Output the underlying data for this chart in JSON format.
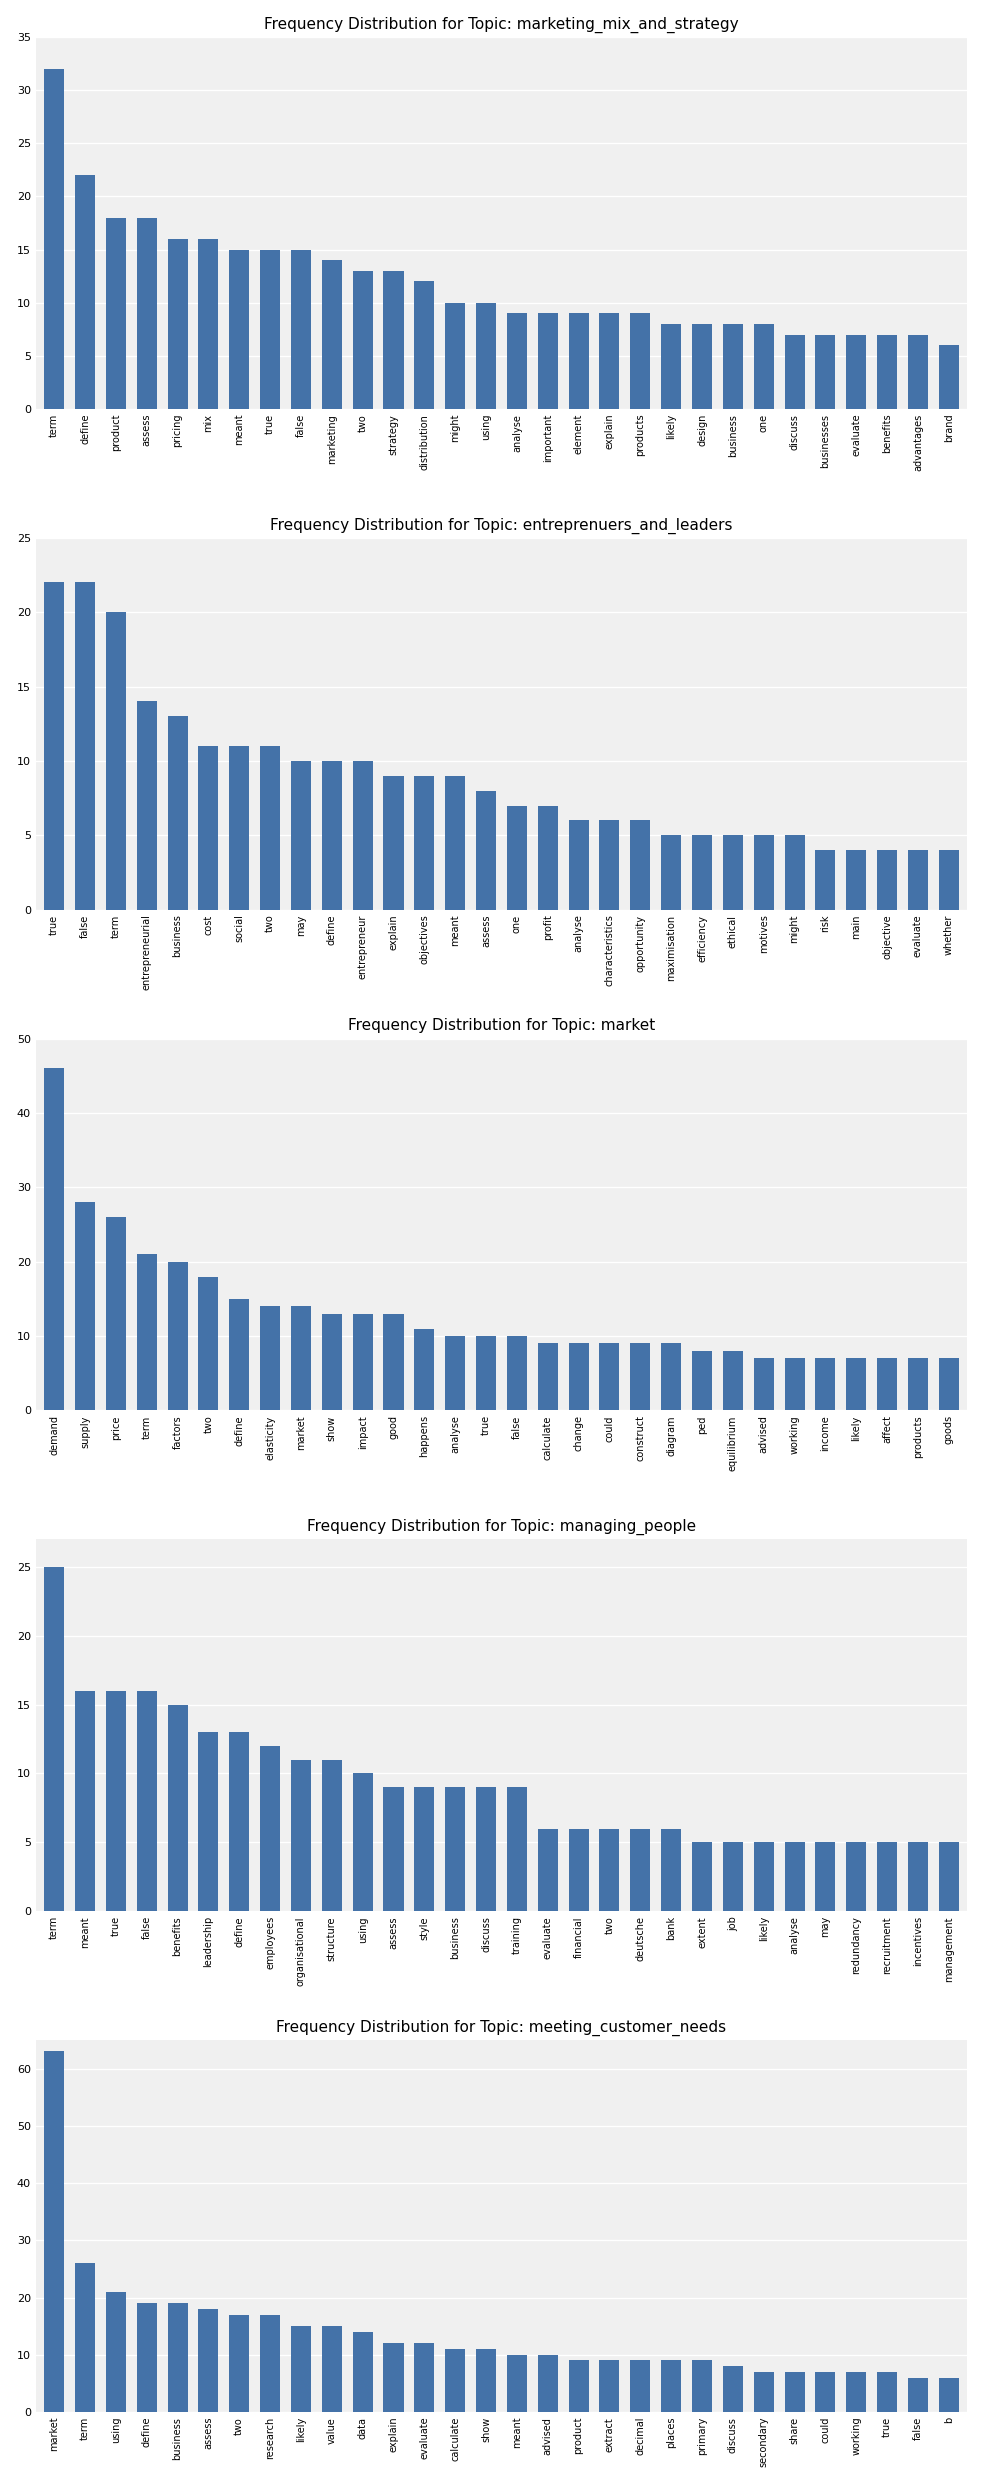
{
  "charts": [
    {
      "title": "Frequency Distribution for Topic: marketing_mix_and_strategy",
      "words": [
        "term",
        "define",
        "product",
        "assess",
        "pricing",
        "mix",
        "meant",
        "true",
        "false",
        "marketing",
        "two",
        "strategy",
        "distribution",
        "might",
        "using",
        "analyse",
        "important",
        "element",
        "explain",
        "products",
        "likely",
        "design",
        "business",
        "one",
        "discuss",
        "businesses",
        "evaluate",
        "benefits",
        "advantages",
        "brand"
      ],
      "values": [
        32,
        22,
        18,
        18,
        16,
        16,
        15,
        15,
        15,
        14,
        13,
        13,
        12,
        10,
        10,
        9,
        9,
        9,
        9,
        9,
        8,
        8,
        8,
        8,
        7,
        7,
        7,
        7,
        7,
        6
      ],
      "ylim": [
        0,
        35
      ],
      "yticks": [
        0,
        5,
        10,
        15,
        20,
        25,
        30,
        35
      ]
    },
    {
      "title": "Frequency Distribution for Topic: entreprenuers_and_leaders",
      "words": [
        "true",
        "false",
        "term",
        "entrepreneurial",
        "business",
        "cost",
        "social",
        "two",
        "may",
        "define",
        "entrepreneur",
        "explain",
        "objectives",
        "meant",
        "assess",
        "one",
        "profit",
        "analyse",
        "characteristics",
        "opportunity",
        "maximisation",
        "efficiency",
        "ethical",
        "motives",
        "might",
        "risk",
        "main",
        "objective",
        "evaluate",
        "whether"
      ],
      "values": [
        22,
        22,
        20,
        14,
        13,
        11,
        11,
        11,
        10,
        10,
        10,
        9,
        9,
        9,
        8,
        7,
        7,
        6,
        6,
        6,
        5,
        5,
        5,
        5,
        5,
        4,
        4,
        4,
        4,
        4
      ],
      "ylim": [
        0,
        25
      ],
      "yticks": [
        0,
        5,
        10,
        15,
        20,
        25
      ]
    },
    {
      "title": "Frequency Distribution for Topic: market",
      "words": [
        "demand",
        "supply",
        "price",
        "term",
        "factors",
        "two",
        "define",
        "elasticity",
        "market",
        "show",
        "impact",
        "good",
        "happens",
        "analyse",
        "true",
        "false",
        "calculate",
        "change",
        "could",
        "construct",
        "diagram",
        "ped",
        "equilibrium",
        "advised",
        "working",
        "income",
        "likely",
        "affect",
        "products",
        "goods"
      ],
      "values": [
        46,
        28,
        26,
        21,
        20,
        18,
        15,
        14,
        14,
        13,
        13,
        13,
        11,
        10,
        10,
        10,
        9,
        9,
        9,
        9,
        9,
        8,
        8,
        7,
        7,
        7,
        7,
        7,
        7,
        7
      ],
      "ylim": [
        0,
        50
      ],
      "yticks": [
        0,
        10,
        20,
        30,
        40,
        50
      ]
    },
    {
      "title": "Frequency Distribution for Topic: managing_people",
      "words": [
        "term",
        "meant",
        "true",
        "false",
        "benefits",
        "leadership",
        "define",
        "employees",
        "organisational",
        "structure",
        "using",
        "assess",
        "style",
        "business",
        "discuss",
        "training",
        "evaluate",
        "financial",
        "two",
        "deutsche",
        "bank",
        "extent",
        "job",
        "likely",
        "analyse",
        "may",
        "redundancy",
        "recruitment",
        "incentives",
        "management"
      ],
      "values": [
        25,
        16,
        16,
        16,
        15,
        13,
        13,
        12,
        11,
        11,
        10,
        9,
        9,
        9,
        9,
        9,
        6,
        6,
        6,
        6,
        6,
        5,
        5,
        5,
        5,
        5,
        5,
        5,
        5,
        5
      ],
      "ylim": [
        0,
        27
      ],
      "yticks": [
        0,
        5,
        10,
        15,
        20,
        25
      ]
    },
    {
      "title": "Frequency Distribution for Topic: meeting_customer_needs",
      "words": [
        "market",
        "term",
        "using",
        "define",
        "business",
        "assess",
        "two",
        "research",
        "likely",
        "value",
        "data",
        "explain",
        "evaluate",
        "calculate",
        "show",
        "meant",
        "advised",
        "product",
        "extract",
        "decimal",
        "places",
        "primary",
        "discuss",
        "secondary",
        "share",
        "could",
        "working",
        "true",
        "false",
        "b"
      ],
      "values": [
        63,
        26,
        21,
        19,
        19,
        18,
        17,
        17,
        15,
        15,
        14,
        12,
        12,
        11,
        11,
        10,
        10,
        9,
        9,
        9,
        9,
        9,
        8,
        7,
        7,
        7,
        7,
        7,
        6,
        6
      ],
      "ylim": [
        0,
        65
      ],
      "yticks": [
        0,
        10,
        20,
        30,
        40,
        50,
        60
      ]
    }
  ],
  "bar_color": "#4472a8",
  "plot_bg": "#f0f0f0",
  "fig_bg": "#ffffff",
  "grid_color": "#ffffff",
  "title_fontsize": 11,
  "tick_fontsize": 7,
  "bar_width": 0.65
}
